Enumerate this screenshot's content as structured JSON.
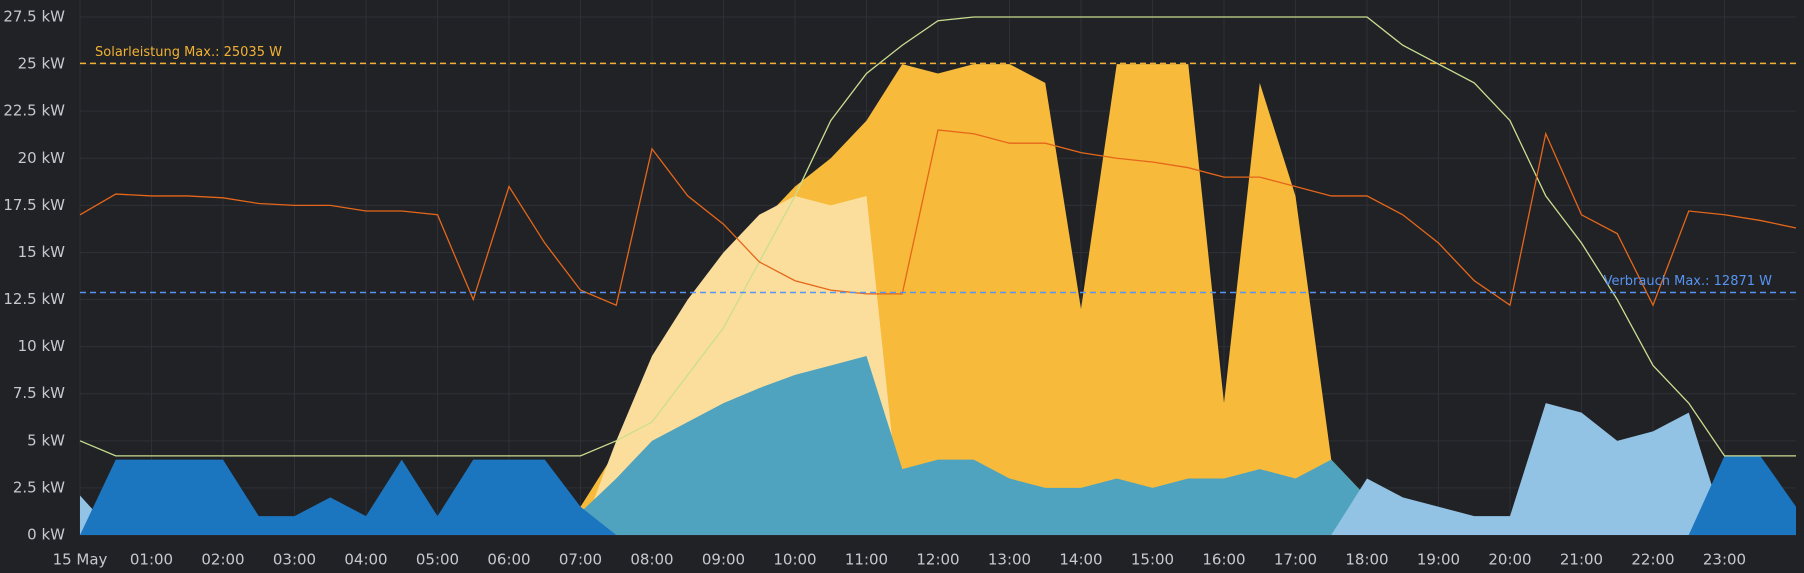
{
  "chart_data": {
    "type": "area",
    "x": [
      0,
      0.5,
      1,
      1.5,
      2,
      2.5,
      3,
      3.5,
      4,
      4.5,
      5,
      5.5,
      6,
      6.5,
      7,
      7.5,
      8,
      8.5,
      9,
      9.5,
      10,
      10.5,
      11,
      11.5,
      12,
      12.5,
      13,
      13.5,
      14,
      14.5,
      15,
      15.5,
      16,
      16.5,
      17,
      17.5,
      18,
      18.5,
      19,
      19.5,
      20,
      20.5,
      21,
      21.5,
      22,
      22.5,
      23,
      23.5,
      24
    ],
    "xlim": [
      0,
      24
    ],
    "xticks": [
      {
        "value": 0,
        "label": "15 May"
      },
      {
        "value": 1,
        "label": "01:00"
      },
      {
        "value": 2,
        "label": "02:00"
      },
      {
        "value": 3,
        "label": "03:00"
      },
      {
        "value": 4,
        "label": "04:00"
      },
      {
        "value": 5,
        "label": "05:00"
      },
      {
        "value": 6,
        "label": "06:00"
      },
      {
        "value": 7,
        "label": "07:00"
      },
      {
        "value": 8,
        "label": "08:00"
      },
      {
        "value": 9,
        "label": "09:00"
      },
      {
        "value": 10,
        "label": "10:00"
      },
      {
        "value": 11,
        "label": "11:00"
      },
      {
        "value": 12,
        "label": "12:00"
      },
      {
        "value": 13,
        "label": "13:00"
      },
      {
        "value": 14,
        "label": "14:00"
      },
      {
        "value": 15,
        "label": "15:00"
      },
      {
        "value": 16,
        "label": "16:00"
      },
      {
        "value": 17,
        "label": "17:00"
      },
      {
        "value": 18,
        "label": "18:00"
      },
      {
        "value": 19,
        "label": "19:00"
      },
      {
        "value": 20,
        "label": "20:00"
      },
      {
        "value": 21,
        "label": "21:00"
      },
      {
        "value": 22,
        "label": "22:00"
      },
      {
        "value": 23,
        "label": "23:00"
      }
    ],
    "ylim": [
      0,
      27.5
    ],
    "yticks": [
      {
        "value": 0,
        "label": "0 kW"
      },
      {
        "value": 2.5,
        "label": "2.5 kW"
      },
      {
        "value": 5,
        "label": "5 kW"
      },
      {
        "value": 7.5,
        "label": "7.5 kW"
      },
      {
        "value": 10,
        "label": "10 kW"
      },
      {
        "value": 12.5,
        "label": "12.5 kW"
      },
      {
        "value": 15,
        "label": "15 kW"
      },
      {
        "value": 17.5,
        "label": "17.5 kW"
      },
      {
        "value": 20,
        "label": "20 kW"
      },
      {
        "value": 22.5,
        "label": "22.5 kW"
      },
      {
        "value": 25,
        "label": "25 kW"
      },
      {
        "value": 27.5,
        "label": "27.5 kW"
      }
    ],
    "grid": true,
    "series": [
      {
        "color": "#f7ba3a",
        "fill": true,
        "values": [
          0,
          0,
          0,
          0,
          0,
          0,
          0,
          0,
          0,
          0,
          0,
          0,
          0,
          0.5,
          1.5,
          4.5,
          9,
          12,
          14.5,
          16.5,
          18.5,
          20,
          22,
          25,
          24.5,
          25,
          25,
          24,
          12,
          25,
          25,
          25,
          7,
          24,
          18,
          4,
          2,
          0.5,
          0,
          0,
          0,
          0,
          0,
          0,
          0,
          0,
          0,
          0,
          0
        ]
      },
      {
        "color": "#fcde9c",
        "fill": true,
        "values": [
          0,
          0,
          0,
          0,
          0,
          0,
          0,
          0,
          0,
          0,
          0,
          0,
          0,
          0,
          0,
          5,
          9.5,
          12.5,
          15,
          17,
          18,
          17.5,
          18,
          0,
          0,
          0,
          0,
          0,
          0,
          0,
          0,
          0,
          0,
          0,
          0,
          0,
          0,
          0,
          0,
          0,
          0,
          0,
          0,
          0,
          0,
          0,
          0,
          0,
          0
        ]
      },
      {
        "color": "#4fa3be",
        "fill": true,
        "values": [
          0,
          0,
          0,
          0,
          0,
          0,
          0,
          0,
          0,
          0,
          0,
          0,
          0,
          0.5,
          1.2,
          3,
          5,
          6,
          7,
          7.8,
          8.5,
          9,
          9.5,
          3.5,
          4,
          4,
          3,
          2.5,
          2.5,
          3,
          2.5,
          3,
          3,
          3.5,
          3,
          4,
          2,
          1,
          0.3,
          0,
          0,
          0,
          0,
          0,
          0,
          0,
          0,
          0,
          0
        ]
      },
      {
        "color": "#93c3e4",
        "fill": true,
        "values": [
          2.1,
          0,
          0,
          0,
          0,
          0,
          0,
          0,
          0,
          0,
          0,
          0,
          0,
          0,
          0,
          0,
          0,
          0,
          0,
          0,
          0,
          0,
          0,
          0,
          0,
          0,
          0,
          0,
          0,
          0,
          0,
          0,
          0,
          0,
          0,
          0,
          3,
          2,
          1.5,
          1,
          1,
          7,
          6.5,
          5,
          5.5,
          6.5,
          0.5,
          0.3,
          0.3
        ]
      },
      {
        "color": "#1b76bf",
        "fill": true,
        "values": [
          0,
          4,
          4,
          4,
          4,
          1,
          1,
          2,
          1,
          4,
          1,
          4,
          4,
          4,
          1.5,
          0,
          0,
          0,
          0,
          0,
          0,
          0,
          0,
          0,
          0,
          0,
          0,
          0,
          0,
          0,
          0,
          0,
          0,
          0,
          0,
          0,
          0,
          0,
          0,
          0,
          0,
          0,
          0,
          0,
          0,
          0,
          4.2,
          4.2,
          1.5
        ]
      },
      {
        "color": "#c9de8f",
        "fill": false,
        "values": [
          5,
          4.2,
          4.2,
          4.2,
          4.2,
          4.2,
          4.2,
          4.2,
          4.2,
          4.2,
          4.2,
          4.2,
          4.2,
          4.2,
          4.2,
          5,
          6,
          8.5,
          11,
          14.5,
          18,
          22,
          24.5,
          26,
          27.3,
          27.5,
          27.5,
          27.5,
          27.5,
          27.5,
          27.5,
          27.5,
          27.5,
          27.5,
          27.5,
          27.5,
          27.5,
          26,
          25,
          24,
          22,
          18,
          15.5,
          12.5,
          9,
          7,
          4.2,
          4.2,
          4.2
        ]
      },
      {
        "color": "#e5661a",
        "fill": false,
        "values": [
          17,
          18.1,
          18,
          18,
          17.9,
          17.6,
          17.5,
          17.5,
          17.2,
          17.2,
          17,
          12.5,
          18.5,
          15.5,
          13,
          12.2,
          20.5,
          18,
          16.5,
          14.5,
          13.5,
          13,
          12.8,
          12.8,
          21.5,
          21.3,
          20.8,
          20.8,
          20.3,
          20,
          19.8,
          19.5,
          19,
          19,
          18.5,
          18,
          18,
          17,
          15.5,
          13.5,
          12.2,
          21.3,
          17,
          16,
          12.2,
          17.2,
          17,
          16.7,
          16.3
        ]
      }
    ],
    "thresholds": [
      {
        "value": 25.035,
        "label": "Solarleistung Max.: 25035 W",
        "color": "#f2b134",
        "label_position": "left"
      },
      {
        "value": 12.871,
        "label": "Verbrauch Max.: 12871 W",
        "color": "#5794f2",
        "label_position": "right"
      }
    ]
  }
}
